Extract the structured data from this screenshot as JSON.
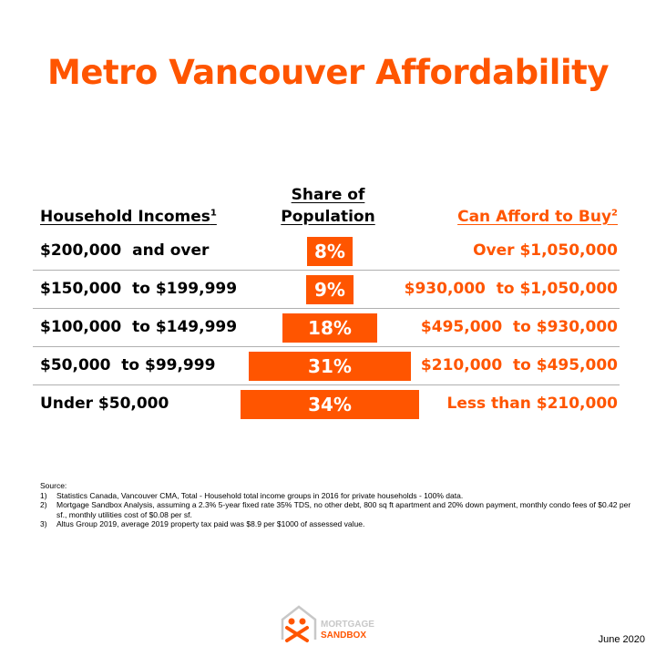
{
  "title": "Metro Vancouver Affordability",
  "headers": {
    "income": "Household Incomes",
    "income_sup": "1",
    "share_line1": "Share of",
    "share_line2": "Population",
    "afford": "Can Afford to Buy",
    "afford_sup": "2"
  },
  "colors": {
    "accent": "#FF5500",
    "divider": "#b0b0b0"
  },
  "chart_data": {
    "type": "bar",
    "categories": [
      "$200,000  and over",
      "$150,000  to $199,999",
      "$100,000  to $149,999",
      "$50,000  to $99,999",
      "Under $50,000"
    ],
    "values": [
      8,
      9,
      18,
      31,
      34
    ],
    "value_labels": [
      "8%",
      "9%",
      "18%",
      "31%",
      "34%"
    ],
    "afford": [
      "Over $1,050,000",
      "$930,000  to $1,050,000",
      "$495,000  to $930,000",
      "$210,000  to $495,000",
      "Less than $210,000"
    ]
  },
  "source": {
    "label": "Source:",
    "notes": [
      {
        "num": "1)",
        "text": "Statistics Canada, Vancouver CMA, Total - Household total income groups in 2016 for private households - 100% data."
      },
      {
        "num": "2)",
        "text": "Mortgage Sandbox Analysis, assuming a 2.3% 5-year fixed rate 35% TDS, no other debt, 800 sq ft apartment and 20% down payment, monthly condo fees of $0.42 per sf., monthly utilities cost of $0.08 per sf."
      },
      {
        "num": "3)",
        "text": "Altus Group 2019, average 2019 property tax paid was $8.9 per $1000 of assessed value."
      }
    ]
  },
  "logo": {
    "line1": "MORTGAGE",
    "line2": "SANDBOX"
  },
  "date": "June 2020"
}
